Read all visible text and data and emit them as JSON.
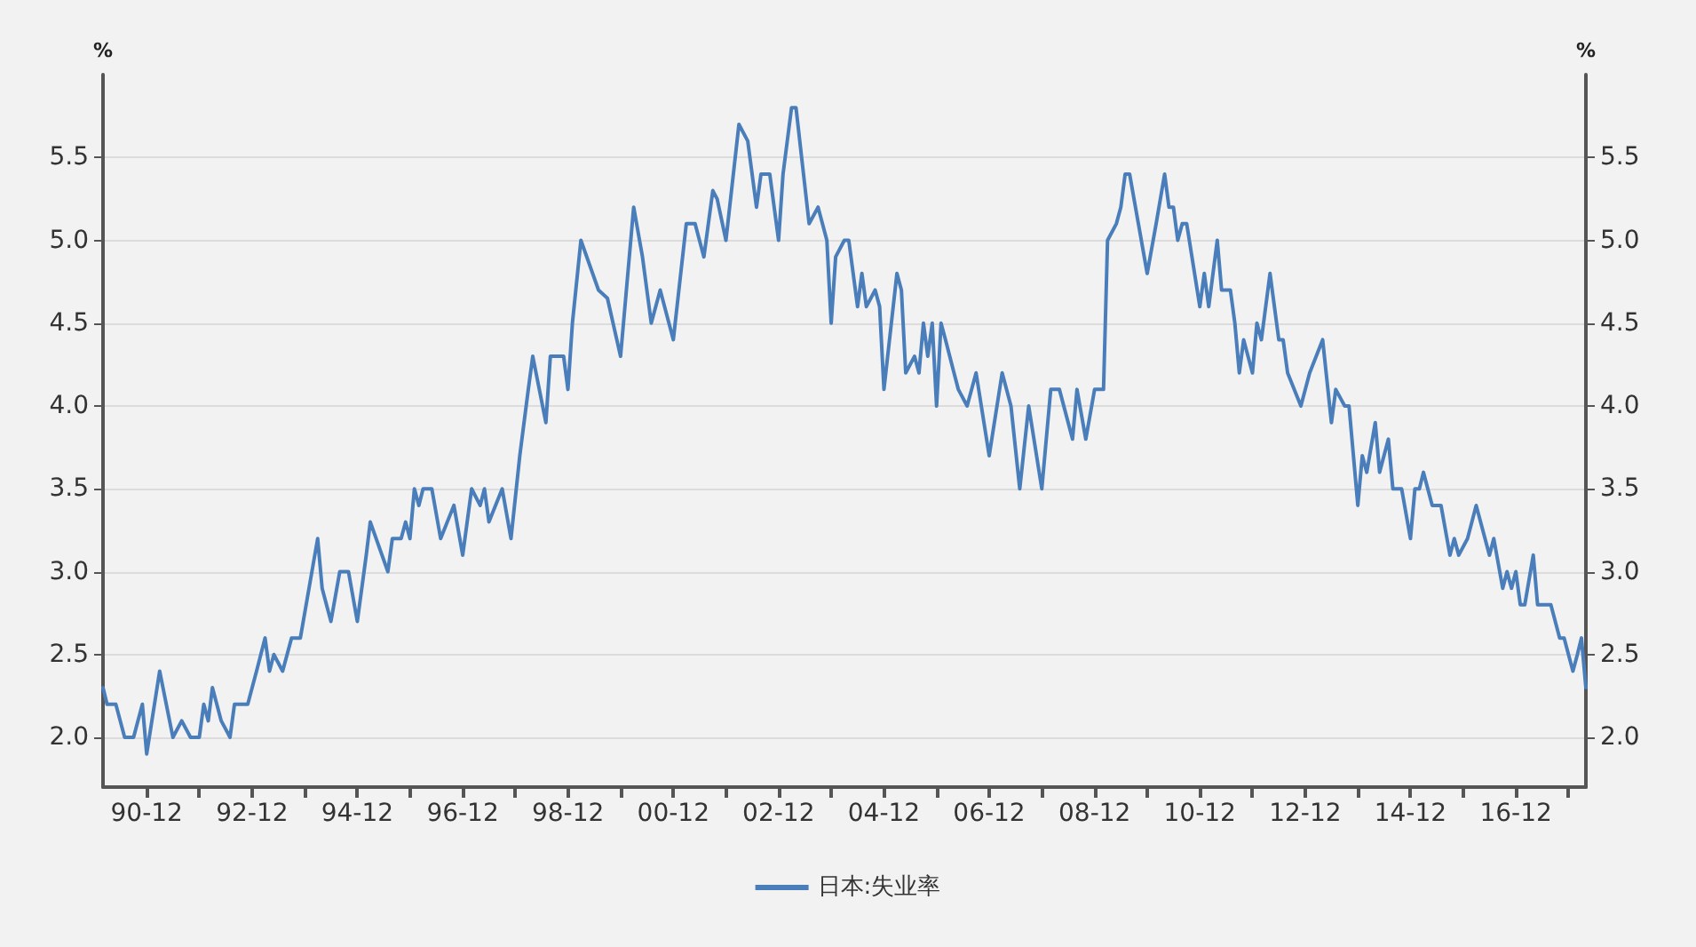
{
  "chart_data": {
    "type": "line",
    "ylabel": "%",
    "y2label": "%",
    "series": [
      {
        "name": "日本:失业率",
        "color": "#4a7ebb",
        "x": [
          "1990-02",
          "1990-03",
          "1990-05",
          "1990-07",
          "1990-09",
          "1990-11",
          "1990-12",
          "1991-03",
          "1991-06",
          "1991-08",
          "1991-10",
          "1991-12",
          "1992-01",
          "1992-02",
          "1992-03",
          "1992-05",
          "1992-07",
          "1992-08",
          "1992-11",
          "1993-01",
          "1993-03",
          "1993-04",
          "1993-05",
          "1993-07",
          "1993-09",
          "1993-11",
          "1994-03",
          "1994-04",
          "1994-06",
          "1994-08",
          "1994-10",
          "1994-12",
          "1995-02",
          "1995-03",
          "1995-07",
          "1995-08",
          "1995-10",
          "1995-11",
          "1995-12",
          "1996-01",
          "1996-02",
          "1996-03",
          "1996-05",
          "1996-07",
          "1996-10",
          "1996-12",
          "1997-02",
          "1997-04",
          "1997-05",
          "1997-06",
          "1997-09",
          "1997-11",
          "1998-01",
          "1998-03",
          "1998-04",
          "1998-07",
          "1998-08",
          "1998-11",
          "1998-12",
          "1999-01",
          "1999-03",
          "1999-07",
          "1999-09",
          "1999-12",
          "2000-03",
          "2000-05",
          "2000-07",
          "2000-09",
          "2000-12",
          "2001-03",
          "2001-05",
          "2001-07",
          "2001-09",
          "2001-10",
          "2001-12",
          "2002-03",
          "2002-05",
          "2002-07",
          "2002-08",
          "2002-10",
          "2002-12",
          "2003-01",
          "2003-03",
          "2003-04",
          "2003-07",
          "2003-09",
          "2003-11",
          "2003-12",
          "2004-01",
          "2004-03",
          "2004-04",
          "2004-06",
          "2004-07",
          "2004-08",
          "2004-10",
          "2004-11",
          "2004-12",
          "2005-03",
          "2005-04",
          "2005-05",
          "2005-07",
          "2005-08",
          "2005-09",
          "2005-10",
          "2005-11",
          "2005-12",
          "2006-01",
          "2006-02",
          "2006-04",
          "2006-05",
          "2006-07",
          "2006-09",
          "2006-12",
          "2007-03",
          "2007-05",
          "2007-07",
          "2007-09",
          "2007-12",
          "2008-02",
          "2008-04",
          "2008-07",
          "2008-08",
          "2008-10",
          "2008-12",
          "2009-01",
          "2009-02",
          "2009-03",
          "2009-05",
          "2009-06",
          "2009-07",
          "2009-08",
          "2009-10",
          "2009-12",
          "2010-02",
          "2010-04",
          "2010-05",
          "2010-06",
          "2010-07",
          "2010-08",
          "2010-09",
          "2010-12",
          "2011-01",
          "2011-02",
          "2011-04",
          "2011-05",
          "2011-07",
          "2011-08",
          "2011-09",
          "2011-10",
          "2011-12",
          "2012-01",
          "2012-02",
          "2012-04",
          "2012-06",
          "2012-07",
          "2012-08",
          "2012-11",
          "2013-01",
          "2013-04",
          "2013-06",
          "2013-07",
          "2013-09",
          "2013-10",
          "2013-12",
          "2014-01",
          "2014-02",
          "2014-04",
          "2014-05",
          "2014-07",
          "2014-08",
          "2014-10",
          "2014-12",
          "2015-01",
          "2015-02",
          "2015-03",
          "2015-05",
          "2015-07",
          "2015-09",
          "2015-10",
          "2015-11",
          "2016-01",
          "2016-03",
          "2016-06",
          "2016-07",
          "2016-09",
          "2016-10",
          "2016-11",
          "2016-12",
          "2017-01",
          "2017-02",
          "2017-04",
          "2017-05",
          "2017-08",
          "2017-10",
          "2017-11",
          "2018-01",
          "2018-02",
          "2018-03",
          "2018-04"
        ],
        "values": [
          2.3,
          2.2,
          2.2,
          2.0,
          2.0,
          2.2,
          1.9,
          2.4,
          2.0,
          2.1,
          2.0,
          2.0,
          2.2,
          2.1,
          2.3,
          2.1,
          2.0,
          2.2,
          2.2,
          2.4,
          2.6,
          2.4,
          2.5,
          2.4,
          2.6,
          2.6,
          3.2,
          2.9,
          2.7,
          3.0,
          3.0,
          2.7,
          3.1,
          3.3,
          3.0,
          3.2,
          3.2,
          3.3,
          3.2,
          3.5,
          3.4,
          3.5,
          3.5,
          3.2,
          3.4,
          3.1,
          3.5,
          3.4,
          3.5,
          3.3,
          3.5,
          3.2,
          3.7,
          4.1,
          4.3,
          3.9,
          4.3,
          4.3,
          4.1,
          4.5,
          5.0,
          4.7,
          4.65,
          4.3,
          5.2,
          4.9,
          4.5,
          4.7,
          4.4,
          5.1,
          5.1,
          4.9,
          5.3,
          5.25,
          5.0,
          5.7,
          5.6,
          5.2,
          5.4,
          5.4,
          5.0,
          5.4,
          5.8,
          5.8,
          5.1,
          5.2,
          5.0,
          4.5,
          4.9,
          5.0,
          5.0,
          4.6,
          4.8,
          4.6,
          4.7,
          4.6,
          4.1,
          4.8,
          4.7,
          4.2,
          4.3,
          4.2,
          4.5,
          4.3,
          4.5,
          4.0,
          4.5,
          4.4,
          4.2,
          4.1,
          4.0,
          4.2,
          3.7,
          4.2,
          4.0,
          3.5,
          4.0,
          3.5,
          4.1,
          4.1,
          3.8,
          4.1,
          3.8,
          4.1,
          4.1,
          4.1,
          5.0,
          5.1,
          5.2,
          5.4,
          5.4,
          5.1,
          4.8,
          5.1,
          5.4,
          5.2,
          5.2,
          5.0,
          5.1,
          5.1,
          4.6,
          4.8,
          4.6,
          5.0,
          4.7,
          4.7,
          4.5,
          4.2,
          4.4,
          4.2,
          4.5,
          4.4,
          4.8,
          4.4,
          4.4,
          4.2,
          4.0,
          4.2,
          4.4,
          3.9,
          4.1,
          4.0,
          4.0,
          3.4,
          3.7,
          3.6,
          3.9,
          3.6,
          3.8,
          3.5,
          3.5,
          3.2,
          3.5,
          3.5,
          3.6,
          3.4,
          3.4,
          3.1,
          3.2,
          3.1,
          3.2,
          3.4,
          3.1,
          3.2,
          2.9,
          3.0,
          2.9,
          3.0,
          2.8,
          2.8,
          3.1,
          2.8,
          2.8,
          2.6,
          2.6,
          2.4,
          2.5,
          2.6,
          2.3
        ]
      }
    ],
    "xlim": [
      "1990-02",
      "2018-04"
    ],
    "xticks": [
      {
        "value": "1990-12",
        "label": "90-12"
      },
      {
        "value": "1991-12",
        "label": null
      },
      {
        "value": "1992-12",
        "label": "92-12"
      },
      {
        "value": "1993-12",
        "label": null
      },
      {
        "value": "1994-12",
        "label": "94-12"
      },
      {
        "value": "1995-12",
        "label": null
      },
      {
        "value": "1996-12",
        "label": "96-12"
      },
      {
        "value": "1997-12",
        "label": null
      },
      {
        "value": "1998-12",
        "label": "98-12"
      },
      {
        "value": "1999-12",
        "label": null
      },
      {
        "value": "2000-12",
        "label": "00-12"
      },
      {
        "value": "2001-12",
        "label": null
      },
      {
        "value": "2002-12",
        "label": "02-12"
      },
      {
        "value": "2003-12",
        "label": null
      },
      {
        "value": "2004-12",
        "label": "04-12"
      },
      {
        "value": "2005-12",
        "label": null
      },
      {
        "value": "2006-12",
        "label": "06-12"
      },
      {
        "value": "2007-12",
        "label": null
      },
      {
        "value": "2008-12",
        "label": "08-12"
      },
      {
        "value": "2009-12",
        "label": null
      },
      {
        "value": "2010-12",
        "label": "10-12"
      },
      {
        "value": "2011-12",
        "label": null
      },
      {
        "value": "2012-12",
        "label": "12-12"
      },
      {
        "value": "2013-12",
        "label": null
      },
      {
        "value": "2014-12",
        "label": "14-12"
      },
      {
        "value": "2015-12",
        "label": null
      },
      {
        "value": "2016-12",
        "label": "16-12"
      },
      {
        "value": "2017-12",
        "label": null
      }
    ],
    "ylim": [
      1.7,
      6.0
    ],
    "yticks": [
      {
        "value": 2,
        "label": "2.0"
      },
      {
        "value": 2.5,
        "label": "2.5"
      },
      {
        "value": 3,
        "label": "3.0"
      },
      {
        "value": 3.5,
        "label": "3.5"
      },
      {
        "value": 4,
        "label": "4.0"
      },
      {
        "value": 4.5,
        "label": "4.5"
      },
      {
        "value": 5,
        "label": "5.0"
      },
      {
        "value": 5.5,
        "label": "5.5"
      }
    ],
    "y2lim": [
      1.7,
      6.0
    ],
    "y2ticks": [
      {
        "value": 2,
        "label": "2.0"
      },
      {
        "value": 2.5,
        "label": "2.5"
      },
      {
        "value": 3,
        "label": "3.0"
      },
      {
        "value": 3.5,
        "label": "3.5"
      },
      {
        "value": 4,
        "label": "4.0"
      },
      {
        "value": 4.5,
        "label": "4.5"
      },
      {
        "value": 5,
        "label": "5.0"
      },
      {
        "value": 5.5,
        "label": "5.5"
      }
    ],
    "grid": "y",
    "legend": "bottom",
    "marker": "none",
    "line_style": "solid"
  }
}
